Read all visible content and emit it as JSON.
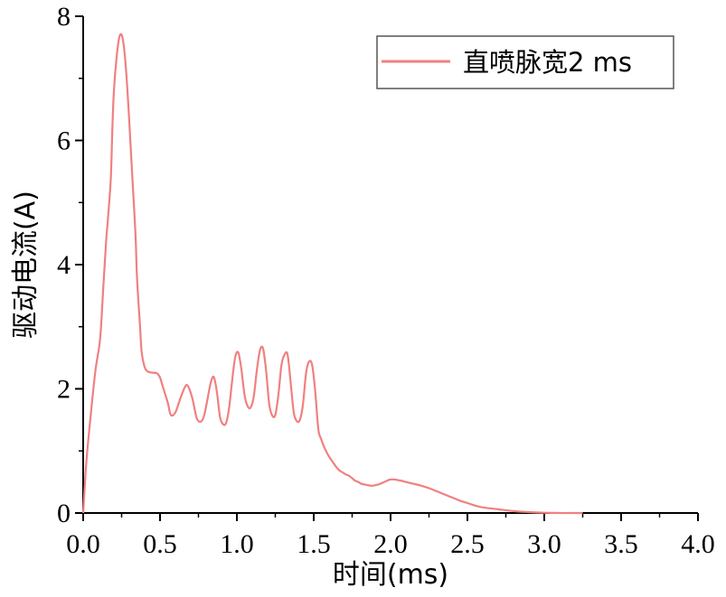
{
  "chart_data": {
    "type": "line",
    "title": "",
    "xlabel": "时间(ms)",
    "ylabel": "驱动电流(A)",
    "xlim": [
      0,
      4.0
    ],
    "ylim": [
      0,
      8
    ],
    "x_ticks": [
      0.0,
      0.5,
      1.0,
      1.5,
      2.0,
      2.5,
      3.0,
      3.5,
      4.0
    ],
    "x_tick_labels": [
      "0.0",
      "0.5",
      "1.0",
      "1.5",
      "2.0",
      "2.5",
      "3.0",
      "3.5",
      "4.0"
    ],
    "y_ticks": [
      0,
      2,
      4,
      6,
      8
    ],
    "y_tick_labels": [
      "0",
      "2",
      "4",
      "6",
      "8"
    ],
    "grid": false,
    "legend_position": "top-right",
    "series": [
      {
        "name": "直喷脉宽2 ms",
        "color": "#f08080",
        "x": [
          0.0,
          0.02,
          0.05,
          0.08,
          0.11,
          0.13,
          0.15,
          0.16,
          0.18,
          0.19,
          0.2,
          0.22,
          0.24,
          0.26,
          0.28,
          0.3,
          0.32,
          0.34,
          0.35,
          0.37,
          0.38,
          0.4,
          0.42,
          0.45,
          0.48,
          0.5,
          0.52,
          0.55,
          0.57,
          0.6,
          0.63,
          0.66,
          0.68,
          0.71,
          0.74,
          0.77,
          0.79,
          0.81,
          0.83,
          0.85,
          0.87,
          0.89,
          0.91,
          0.93,
          0.95,
          0.97,
          0.99,
          1.01,
          1.03,
          1.05,
          1.07,
          1.09,
          1.11,
          1.13,
          1.15,
          1.17,
          1.19,
          1.21,
          1.23,
          1.25,
          1.27,
          1.29,
          1.31,
          1.33,
          1.35,
          1.37,
          1.39,
          1.41,
          1.43,
          1.45,
          1.47,
          1.49,
          1.51,
          1.53,
          1.55,
          1.57,
          1.59,
          1.61,
          1.63,
          1.65,
          1.67,
          1.69,
          1.71,
          1.73,
          1.75,
          1.77,
          1.79,
          1.81,
          1.83,
          1.85,
          1.88,
          1.92,
          1.96,
          2.0,
          2.05,
          2.1,
          2.15,
          2.2,
          2.25,
          2.3,
          2.35,
          2.4,
          2.45,
          2.5,
          2.55,
          2.6,
          2.7,
          2.8,
          2.9,
          3.0,
          3.1,
          3.2,
          3.25
        ],
        "y": [
          0.0,
          0.8,
          1.6,
          2.3,
          2.8,
          3.6,
          4.4,
          4.7,
          5.4,
          6.2,
          6.8,
          7.4,
          7.7,
          7.6,
          7.1,
          6.3,
          5.4,
          4.5,
          3.8,
          3.0,
          2.6,
          2.35,
          2.28,
          2.26,
          2.25,
          2.18,
          2.02,
          1.78,
          1.58,
          1.62,
          1.83,
          2.02,
          2.05,
          1.85,
          1.52,
          1.48,
          1.6,
          1.85,
          2.1,
          2.19,
          1.95,
          1.55,
          1.43,
          1.45,
          1.7,
          2.15,
          2.52,
          2.58,
          2.3,
          1.9,
          1.72,
          1.7,
          1.88,
          2.3,
          2.62,
          2.65,
          2.3,
          1.76,
          1.57,
          1.58,
          1.9,
          2.38,
          2.55,
          2.55,
          2.1,
          1.62,
          1.48,
          1.5,
          1.75,
          2.25,
          2.44,
          2.38,
          1.95,
          1.35,
          1.18,
          1.05,
          0.95,
          0.87,
          0.8,
          0.73,
          0.68,
          0.65,
          0.62,
          0.6,
          0.56,
          0.52,
          0.5,
          0.47,
          0.46,
          0.45,
          0.44,
          0.46,
          0.5,
          0.54,
          0.53,
          0.5,
          0.47,
          0.44,
          0.4,
          0.35,
          0.3,
          0.25,
          0.2,
          0.16,
          0.12,
          0.09,
          0.06,
          0.03,
          0.015,
          0.005,
          0.0,
          0.0,
          0.0
        ]
      }
    ]
  }
}
